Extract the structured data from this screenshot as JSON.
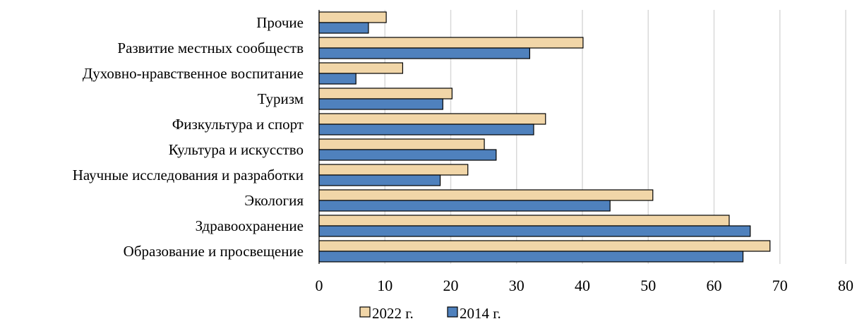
{
  "chart_data": {
    "type": "bar",
    "orientation": "horizontal",
    "categories": [
      "Прочие",
      "Развитие местных сообществ",
      "Духовно-нравственное воспитание",
      "Туризм",
      "Физкультура и спорт",
      "Культура и искусство",
      "Научные исследования и разработки",
      "Экология",
      "Здравоохранение",
      "Образование и просвещение"
    ],
    "series": [
      {
        "name": "2022 г.",
        "color": "#f1d6a8",
        "values": [
          10.2,
          40.1,
          12.7,
          20.2,
          34.4,
          25.1,
          22.6,
          50.7,
          62.3,
          68.5
        ]
      },
      {
        "name": "2014 г.",
        "color": "#4f81bd",
        "values": [
          7.5,
          32.0,
          5.6,
          18.8,
          32.6,
          26.9,
          18.4,
          44.2,
          65.5,
          64.4
        ]
      }
    ],
    "xlim": [
      0,
      80
    ],
    "xticks": [
      "0",
      "10",
      "20",
      "30",
      "40",
      "50",
      "60",
      "70",
      "80"
    ],
    "grid": true,
    "legend_position": "bottom"
  }
}
